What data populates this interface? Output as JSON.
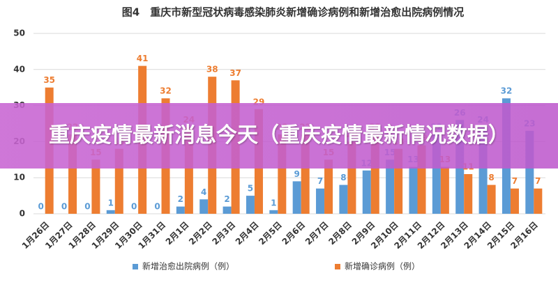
{
  "chart_data": {
    "type": "bar",
    "title": "图4　重庆市新型冠状病毒感染肺炎新增确诊病例和新增治愈出院病例情况",
    "categories": [
      "1月26日",
      "1月27日",
      "1月28日",
      "1月29日",
      "1月30日",
      "1月31日",
      "2月1日",
      "2月2日",
      "2月3日",
      "2月4日",
      "2月5日",
      "2月6日",
      "2月7日",
      "2月8日",
      "2月9日",
      "2月10日",
      "2月11日",
      "2月12日",
      "2月13日",
      "2月14日",
      "2月15日",
      "2月16日"
    ],
    "series": [
      {
        "name": "新增治愈出院病例（例）",
        "color": "#5b9bd5",
        "values": [
          0,
          0,
          0,
          1,
          0,
          0,
          2,
          4,
          2,
          5,
          1,
          9,
          7,
          8,
          12,
          15,
          13,
          22,
          26,
          24,
          32,
          23
        ]
      },
      {
        "name": "新增确诊病例（例）",
        "color": "#ed7d31",
        "values": [
          35,
          22,
          15,
          18,
          41,
          32,
          24,
          38,
          37,
          29,
          22,
          22,
          15,
          20,
          22,
          18,
          19,
          13,
          11,
          8,
          7,
          7
        ]
      }
    ],
    "ylim": [
      0,
      50
    ],
    "yticks": [
      0,
      10,
      20,
      30,
      40,
      50
    ],
    "grid": true
  },
  "banner": "重庆疫情最新消息今天（重庆疫情最新情况数据）"
}
